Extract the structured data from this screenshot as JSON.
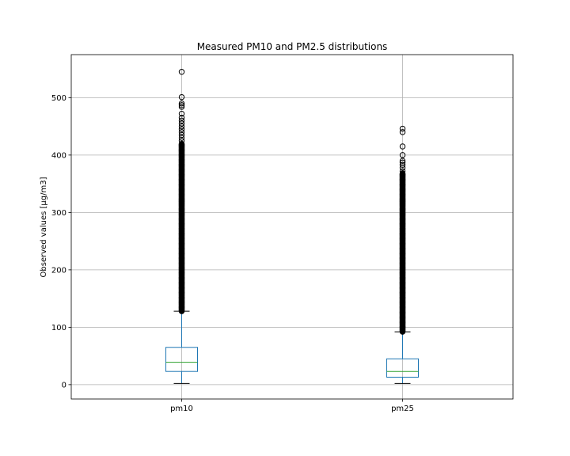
{
  "chart_data": {
    "type": "box",
    "title": "Measured PM10 and PM2.5 distributions",
    "xlabel": "",
    "ylabel": "Observed values [µg/m3]",
    "categories": [
      "pm10",
      "pm25"
    ],
    "ylim": [
      -25,
      575
    ],
    "yticks": [
      0,
      100,
      200,
      300,
      400,
      500
    ],
    "grid": true,
    "boxes": [
      {
        "name": "pm10",
        "whisker_low": 2,
        "q1": 23,
        "median": 39,
        "q3": 65,
        "whisker_high": 128,
        "outlier_dense_range": [
          128,
          420
        ],
        "outliers": [
          425,
          430,
          435,
          440,
          445,
          450,
          455,
          460,
          465,
          472,
          484,
          487,
          490,
          501,
          545
        ]
      },
      {
        "name": "pm25",
        "whisker_low": 2,
        "q1": 13,
        "median": 23,
        "q3": 45,
        "whisker_high": 92,
        "outlier_dense_range": [
          92,
          368
        ],
        "outliers": [
          372,
          378,
          383,
          387,
          390,
          400,
          415,
          440,
          446
        ]
      }
    ],
    "colors": {
      "box": "#1f77b4",
      "median": "#2ca02c",
      "whisker": "#1f77b4",
      "cap": "#000000",
      "outlier": "#000000",
      "grid": "#b0b0b0"
    }
  }
}
